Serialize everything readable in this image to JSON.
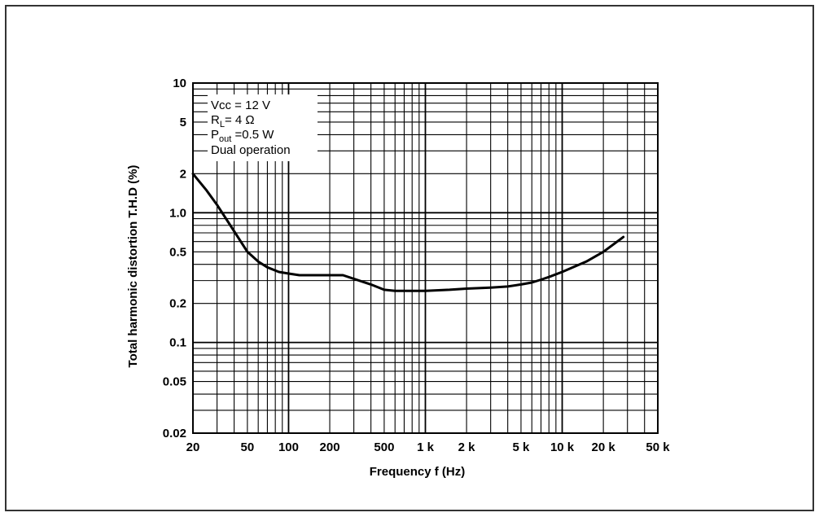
{
  "chart_data": {
    "type": "line",
    "title": "",
    "xlabel": "Frequency f (Hz)",
    "ylabel": "Total harmonic distortion T.H.D (%)",
    "xscale": "log",
    "yscale": "log",
    "xlim": [
      20,
      50000
    ],
    "ylim": [
      0.02,
      10
    ],
    "grid": true,
    "x_tick_labels": [
      "20",
      "50",
      "100",
      "200",
      "500",
      "1 k",
      "2 k",
      "5 k",
      "10 k",
      "20 k",
      "50 k"
    ],
    "x_tick_values": [
      20,
      50,
      100,
      200,
      500,
      1000,
      2000,
      5000,
      10000,
      20000,
      50000
    ],
    "y_tick_labels": [
      "10",
      "5",
      "2",
      "1.0",
      "0.5",
      "0.2",
      "0.1",
      "0.05",
      "0.02"
    ],
    "y_tick_values": [
      10,
      5,
      2,
      1,
      0.5,
      0.2,
      0.1,
      0.05,
      0.02
    ],
    "annotations": {
      "vcc": "Vcc = 12 V",
      "rl_main": "R",
      "rl_sub": "L",
      "rl_rest": "= 4 Ω",
      "pout_main": "P",
      "pout_sub": "out",
      "pout_rest": " =0.5 W",
      "mode": "Dual operation"
    },
    "series": [
      {
        "color": "#000000",
        "x": [
          20,
          25,
          30,
          40,
          50,
          60,
          70,
          85,
          100,
          120,
          150,
          200,
          250,
          300,
          400,
          500,
          600,
          700,
          800,
          1000,
          1500,
          2000,
          3000,
          4000,
          5000,
          6000,
          7000,
          8000,
          10000,
          15000,
          20000,
          28000
        ],
        "y": [
          2.0,
          1.5,
          1.15,
          0.72,
          0.5,
          0.42,
          0.38,
          0.35,
          0.34,
          0.33,
          0.33,
          0.33,
          0.33,
          0.31,
          0.28,
          0.255,
          0.25,
          0.25,
          0.25,
          0.25,
          0.255,
          0.26,
          0.265,
          0.27,
          0.28,
          0.29,
          0.305,
          0.32,
          0.35,
          0.42,
          0.5,
          0.65
        ]
      }
    ]
  }
}
